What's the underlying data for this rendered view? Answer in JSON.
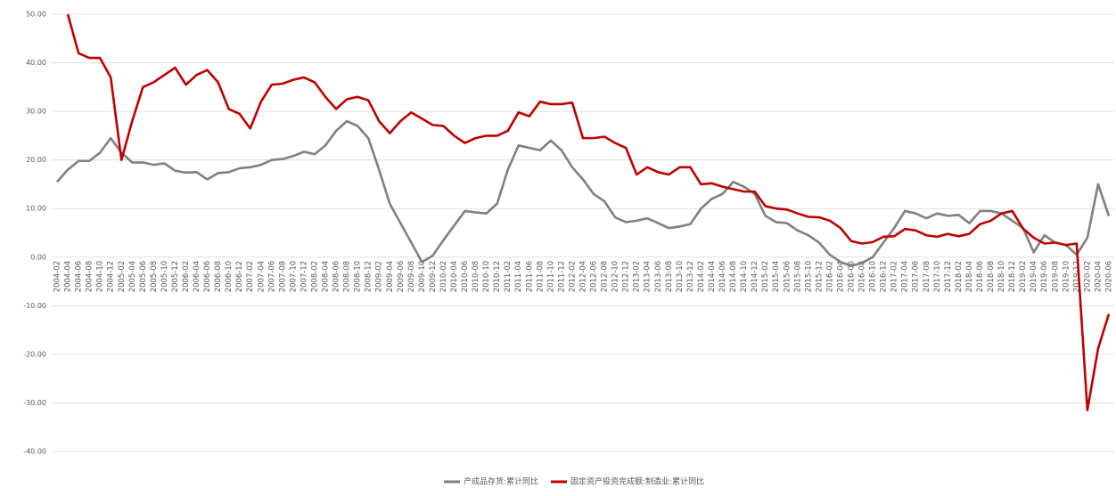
{
  "chart_data": {
    "type": "line",
    "categories": [
      "2004-02",
      "2004-04",
      "2004-06",
      "2004-08",
      "2004-10",
      "2004-12",
      "2005-02",
      "2005-04",
      "2005-06",
      "2005-08",
      "2005-10",
      "2005-12",
      "2006-02",
      "2006-04",
      "2006-06",
      "2006-08",
      "2006-10",
      "2006-12",
      "2007-02",
      "2007-04",
      "2007-06",
      "2007-08",
      "2007-10",
      "2007-12",
      "2008-02",
      "2008-04",
      "2008-06",
      "2008-08",
      "2008-10",
      "2008-12",
      "2009-02",
      "2009-04",
      "2009-06",
      "2009-08",
      "2009-10",
      "2009-12",
      "2010-02",
      "2010-04",
      "2010-06",
      "2010-08",
      "2010-10",
      "2010-12",
      "2011-02",
      "2011-04",
      "2011-06",
      "2011-08",
      "2011-10",
      "2011-12",
      "2012-02",
      "2012-04",
      "2012-06",
      "2012-08",
      "2012-10",
      "2012-12",
      "2013-02",
      "2013-04",
      "2013-06",
      "2013-08",
      "2013-10",
      "2013-12",
      "2014-02",
      "2014-04",
      "2014-06",
      "2014-08",
      "2014-10",
      "2014-12",
      "2015-02",
      "2015-04",
      "2015-06",
      "2015-08",
      "2015-10",
      "2015-12",
      "2016-02",
      "2016-04",
      "2016-06",
      "2016-08",
      "2016-10",
      "2016-12",
      "2017-02",
      "2017-04",
      "2017-06",
      "2017-08",
      "2017-10",
      "2017-12",
      "2018-02",
      "2018-04",
      "2018-06",
      "2018-08",
      "2018-10",
      "2018-12",
      "2019-02",
      "2019-04",
      "2019-06",
      "2019-08",
      "2019-10",
      "2019-12",
      "2020-02",
      "2020-04",
      "2020-06"
    ],
    "series": [
      {
        "name": "产成品存货:累计同比",
        "color": "#808080",
        "values": [
          15.5,
          18,
          19.8,
          19.8,
          21.5,
          24.5,
          21.5,
          19.5,
          19.5,
          19,
          19.3,
          17.8,
          17.4,
          17.5,
          16,
          17.3,
          17.5,
          18.3,
          18.5,
          19,
          20,
          20.2,
          20.8,
          21.7,
          21.2,
          23,
          26,
          28,
          27,
          24.5,
          18,
          11,
          7,
          3,
          -1,
          0.3,
          3.5,
          6.5,
          9.5,
          9.2,
          9,
          11,
          18,
          23,
          22.5,
          22,
          24,
          22,
          18.5,
          16,
          13,
          11.5,
          8.2,
          7.2,
          7.5,
          8,
          7,
          6,
          6.3,
          6.8,
          10,
          12,
          13,
          15.5,
          14.5,
          13,
          8.5,
          7.2,
          7,
          5.5,
          4.5,
          3,
          0.5,
          -1,
          -1.8,
          -1.2,
          0,
          3,
          6,
          9.5,
          9,
          8,
          9,
          8.5,
          8.7,
          7,
          9.5,
          9.5,
          9,
          7.5,
          6,
          1,
          4.5,
          3,
          2.5,
          0.5,
          4,
          15,
          8.5
        ]
      },
      {
        "name": "固定资产投资完成额:制造业:累计同比",
        "color": "#c00000",
        "values": [
          null,
          50,
          42,
          41,
          41,
          37,
          20,
          28,
          35,
          36,
          37.5,
          39,
          35.5,
          37.5,
          38.5,
          36,
          30.5,
          29.5,
          26.5,
          32,
          35.5,
          35.7,
          36.5,
          37,
          36,
          33,
          30.5,
          32.5,
          33,
          32.3,
          28,
          25.5,
          28,
          29.8,
          28.5,
          27.2,
          27,
          25,
          23.5,
          24.5,
          25,
          25,
          26,
          29.8,
          29,
          32,
          31.5,
          31.5,
          31.8,
          24.5,
          24.5,
          24.8,
          23.5,
          22.5,
          17,
          18.5,
          17.5,
          17,
          18.5,
          18.5,
          15,
          15.2,
          14.5,
          14,
          13.5,
          13.5,
          10.5,
          10,
          9.8,
          9,
          8.3,
          8.2,
          7.5,
          6,
          3.3,
          2.8,
          3.1,
          4.2,
          4.3,
          5.8,
          5.5,
          4.5,
          4.2,
          4.8,
          4.3,
          4.8,
          6.8,
          7.5,
          9,
          9.5,
          5.9,
          4,
          2.8,
          3,
          2.5,
          2.8,
          -31.5,
          -18.8,
          -11.7
        ]
      }
    ],
    "ylim": [
      -40,
      50
    ],
    "yticks": [
      {
        "value": 50,
        "label": "50.00"
      },
      {
        "value": 40,
        "label": "40.00"
      },
      {
        "value": 30,
        "label": "30.00"
      },
      {
        "value": 20,
        "label": "20.00"
      },
      {
        "value": 10,
        "label": "10.00"
      },
      {
        "value": 0,
        "label": "0.00"
      },
      {
        "value": -10,
        "label": "-10.00"
      },
      {
        "value": -20,
        "label": "-20.00"
      },
      {
        "value": -30,
        "label": "-30.00"
      },
      {
        "value": -40,
        "label": "-40.00"
      }
    ],
    "grid": true,
    "legend": "bottom"
  }
}
